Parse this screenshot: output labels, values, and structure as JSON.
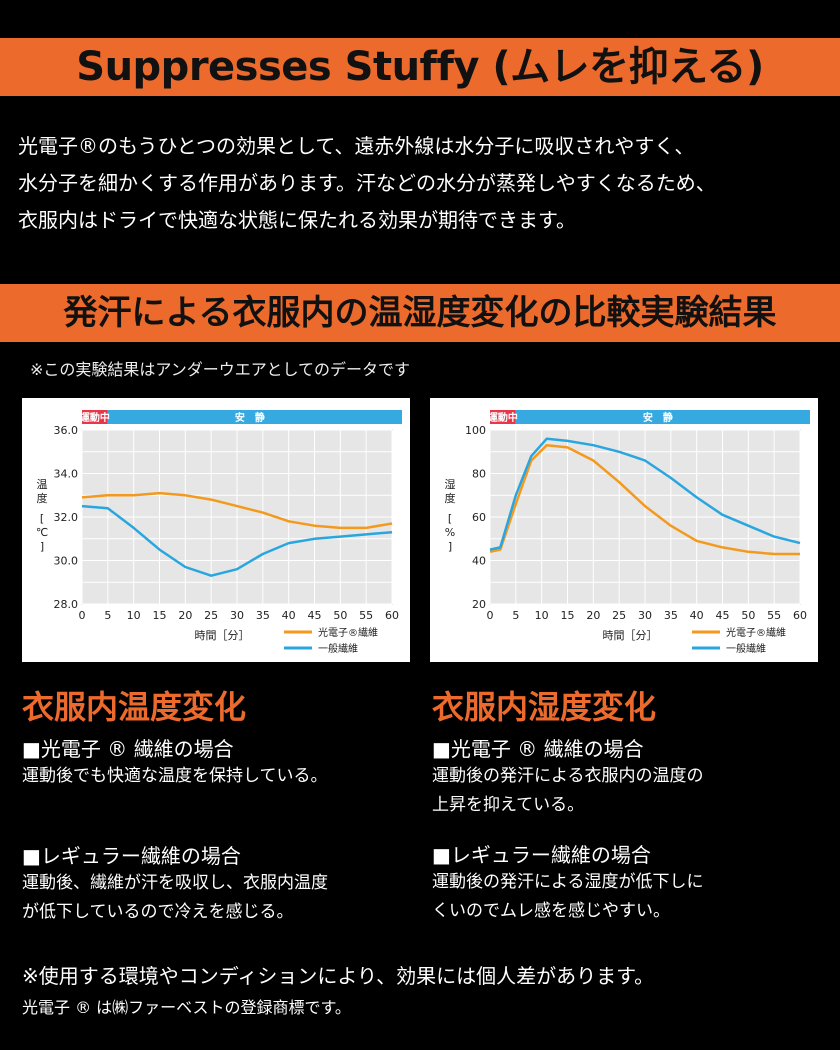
{
  "banner_title": "Suppresses Stuffy (ムレを抑える)",
  "intro_lines": [
    "光電子®のもうひとつの効果として、遠赤外線は水分子に吸収されやすく、",
    "水分子を細かくする作用があります。汗などの水分が蒸発しやすくなるため、",
    "衣服内はドライで快適な状態に保たれる効果が期待できます。"
  ],
  "section_title": "発汗による衣服内の温湿度変化の比較実験結果",
  "note": "※この実験結果はアンダーウエアとしてのデータです",
  "colors": {
    "accent": "#ec6a2c",
    "orange_series": "#f39a1e",
    "blue_series": "#2aa6df",
    "phase_red": "#e8374a",
    "phase_blue": "#36a9e1"
  },
  "chart_data": [
    {
      "type": "line",
      "phase_labels": [
        "運動中",
        "安　静"
      ],
      "ylabel": "温度 [℃]",
      "xlabel": "時間［分］",
      "ylim": [
        28,
        36
      ],
      "xlim": [
        0,
        60
      ],
      "yticks": [
        "28.0",
        "30.0",
        "32.0",
        "34.0",
        "36.0"
      ],
      "xticks": [
        "0",
        "5",
        "10",
        "15",
        "20",
        "25",
        "30",
        "35",
        "40",
        "45",
        "50",
        "55",
        "60"
      ],
      "x": [
        0,
        5,
        10,
        15,
        20,
        25,
        30,
        35,
        40,
        45,
        50,
        55,
        60
      ],
      "series": [
        {
          "name": "光電子®繊維",
          "values": [
            32.9,
            33.0,
            33.0,
            33.1,
            33.0,
            32.8,
            32.5,
            32.2,
            31.8,
            31.6,
            31.5,
            31.5,
            31.7
          ]
        },
        {
          "name": "一般繊維",
          "values": [
            32.5,
            32.4,
            31.5,
            30.5,
            29.7,
            29.3,
            29.6,
            30.3,
            30.8,
            31.0,
            31.1,
            31.2,
            31.3
          ]
        }
      ]
    },
    {
      "type": "line",
      "phase_labels": [
        "運動中",
        "安　静"
      ],
      "ylabel": "湿度 [%]",
      "xlabel": "時間［分］",
      "ylim": [
        20,
        100
      ],
      "xlim": [
        0,
        60
      ],
      "yticks": [
        "20",
        "40",
        "60",
        "80",
        "100"
      ],
      "xticks": [
        "0",
        "5",
        "10",
        "15",
        "20",
        "25",
        "30",
        "35",
        "40",
        "45",
        "50",
        "55",
        "60"
      ],
      "x": [
        0,
        2,
        5,
        8,
        11,
        15,
        20,
        25,
        30,
        35,
        40,
        45,
        50,
        55,
        60
      ],
      "series": [
        {
          "name": "光電子®繊維",
          "values": [
            44,
            45,
            66,
            86,
            93,
            92,
            86,
            76,
            65,
            56,
            49,
            46,
            44,
            43,
            43
          ]
        },
        {
          "name": "一般繊維",
          "values": [
            45,
            46,
            70,
            88,
            96,
            95,
            93,
            90,
            86,
            78,
            69,
            61,
            56,
            51,
            48
          ]
        }
      ]
    }
  ],
  "left": {
    "heading": "衣服内温度変化",
    "blocks": [
      {
        "title": "■光電子 ® 繊維の場合",
        "lines": [
          "運動後でも快適な温度を保持している。"
        ]
      },
      {
        "title": "■レギュラー繊維の場合",
        "lines": [
          "運動後、繊維が汗を吸収し、衣服内温度",
          "が低下しているので冷えを感じる。"
        ]
      }
    ]
  },
  "right": {
    "heading": "衣服内湿度変化",
    "blocks": [
      {
        "title": "■光電子 ® 繊維の場合",
        "lines": [
          "運動後の発汗による衣服内の温度の",
          "上昇を抑えている。"
        ]
      },
      {
        "title": "■レギュラー繊維の場合",
        "lines": [
          "運動後の発汗による湿度が低下しに",
          "くいのでムレ感を感じやすい。"
        ]
      }
    ]
  },
  "footnotes": [
    "※使用する環境やコンディションにより、効果には個人差があります。",
    "光電子 ® は㈱ファーベストの登録商標です。"
  ]
}
